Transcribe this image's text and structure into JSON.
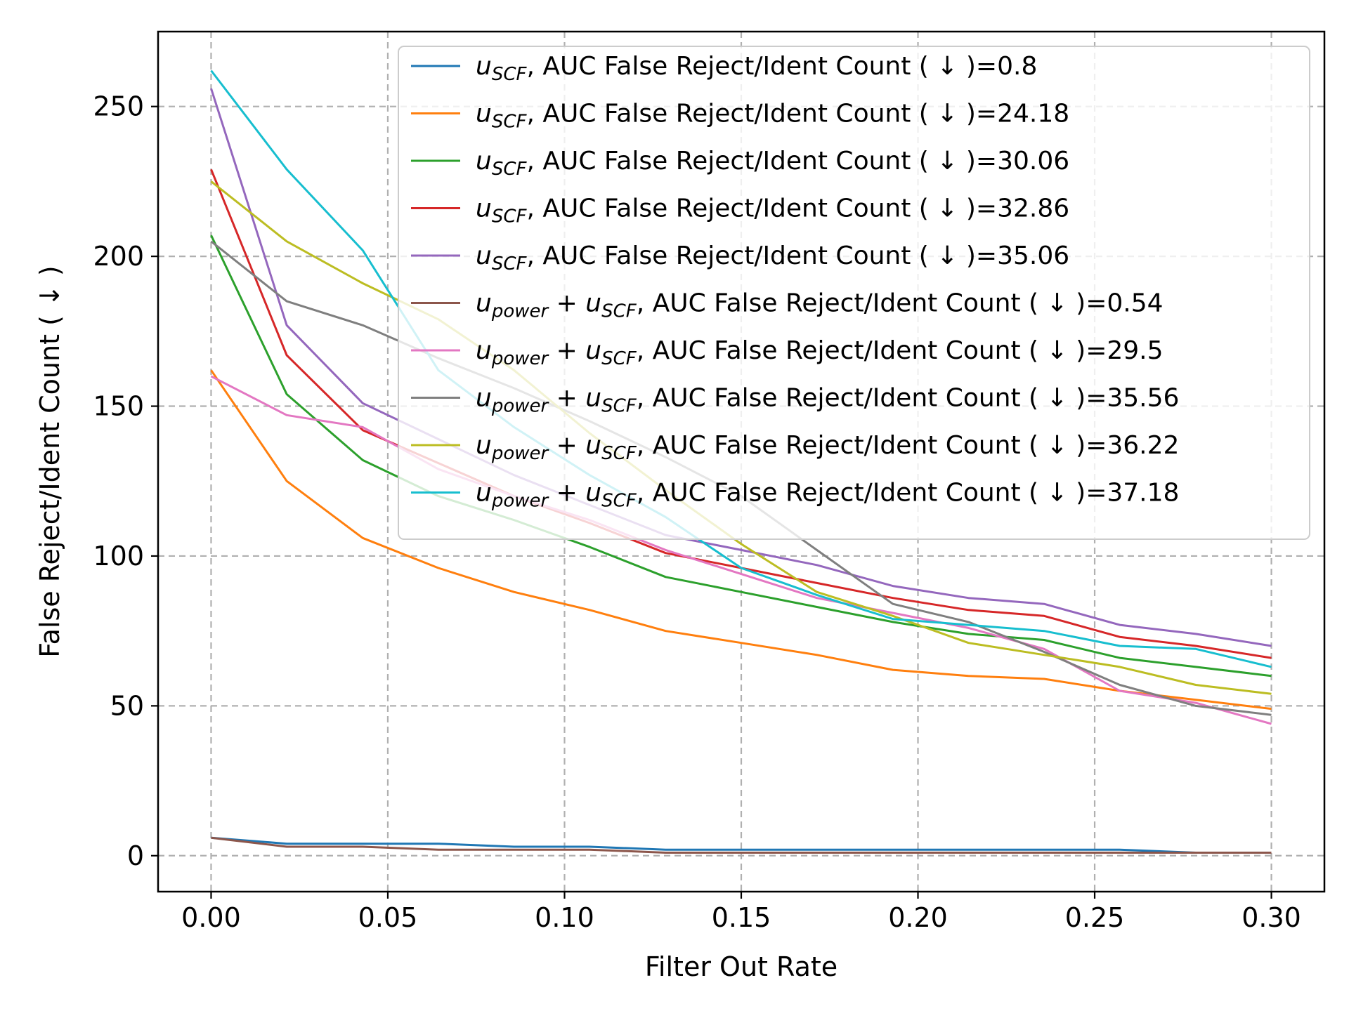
{
  "chart_data": {
    "type": "line",
    "xlabel": "Filter Out Rate",
    "ylabel": "False Reject/Ident Count ( ↓ )",
    "xlim": [
      -0.015,
      0.315
    ],
    "ylim": [
      -12,
      275
    ],
    "xticks": [
      0.0,
      0.05,
      0.1,
      0.15,
      0.2,
      0.25,
      0.3
    ],
    "xtick_labels": [
      "0.00",
      "0.05",
      "0.10",
      "0.15",
      "0.20",
      "0.25",
      "0.30"
    ],
    "yticks": [
      0,
      50,
      100,
      150,
      200,
      250
    ],
    "ytick_labels": [
      "0",
      "50",
      "100",
      "150",
      "200",
      "250"
    ],
    "grid": true,
    "legend_position": "upper right",
    "x": [
      0.0,
      0.0214,
      0.0429,
      0.0643,
      0.0857,
      0.1071,
      0.1286,
      0.15,
      0.1714,
      0.1929,
      0.2143,
      0.2357,
      0.2571,
      0.2786,
      0.3
    ],
    "series": [
      {
        "math": "scf",
        "metric": ", AUC False Reject/Ident Count ( ↓ )=0.8",
        "color": "#1f77b4",
        "values": [
          6,
          4,
          4,
          4,
          3,
          3,
          2,
          2,
          2,
          2,
          2,
          2,
          2,
          1,
          1
        ]
      },
      {
        "math": "scf",
        "metric": ", AUC False Reject/Ident Count ( ↓ )=24.18",
        "color": "#ff7f0e",
        "values": [
          162,
          125,
          106,
          96,
          88,
          82,
          75,
          71,
          67,
          62,
          60,
          59,
          55,
          52,
          49
        ]
      },
      {
        "math": "scf",
        "metric": ", AUC False Reject/Ident Count ( ↓ )=30.06",
        "color": "#2ca02c",
        "values": [
          207,
          154,
          132,
          120,
          112,
          103,
          93,
          88,
          83,
          78,
          74,
          72,
          66,
          63,
          60
        ]
      },
      {
        "math": "scf",
        "metric": ", AUC False Reject/Ident Count ( ↓ )=32.86",
        "color": "#d62728",
        "values": [
          229,
          167,
          142,
          131,
          120,
          111,
          101,
          96,
          91,
          86,
          82,
          80,
          73,
          70,
          66
        ]
      },
      {
        "math": "scf",
        "metric": ", AUC False Reject/Ident Count ( ↓ )=35.06",
        "color": "#9467bd",
        "values": [
          256,
          177,
          151,
          139,
          127,
          117,
          107,
          102,
          97,
          90,
          86,
          84,
          77,
          74,
          70
        ]
      },
      {
        "math": "power_scf",
        "metric": ", AUC False Reject/Ident Count ( ↓ )=0.54",
        "color": "#8c564b",
        "values": [
          6,
          3,
          3,
          2,
          2,
          2,
          1,
          1,
          1,
          1,
          1,
          1,
          1,
          1,
          1
        ]
      },
      {
        "math": "power_scf",
        "metric": ", AUC False Reject/Ident Count ( ↓ )=29.5",
        "color": "#e377c2",
        "values": [
          160,
          147,
          143,
          129,
          120,
          112,
          102,
          94,
          86,
          81,
          76,
          69,
          55,
          51,
          44
        ]
      },
      {
        "math": "power_scf",
        "metric": ", AUC False Reject/Ident Count ( ↓ )=35.56",
        "color": "#7f7f7f",
        "values": [
          205,
          185,
          177,
          166,
          156,
          145,
          133,
          120,
          102,
          84,
          78,
          68,
          57,
          50,
          47
        ]
      },
      {
        "math": "power_scf",
        "metric": ", AUC False Reject/Ident Count ( ↓ )=36.22",
        "color": "#bcbd22",
        "values": [
          225,
          205,
          191,
          179,
          162,
          141,
          122,
          104,
          88,
          80,
          71,
          67,
          63,
          57,
          54
        ]
      },
      {
        "math": "power_scf",
        "metric": ", AUC False Reject/Ident Count ( ↓ )=37.18",
        "color": "#17becf",
        "values": [
          262,
          229,
          202,
          162,
          143,
          127,
          113,
          96,
          87,
          79,
          77,
          75,
          70,
          69,
          63
        ]
      }
    ]
  }
}
